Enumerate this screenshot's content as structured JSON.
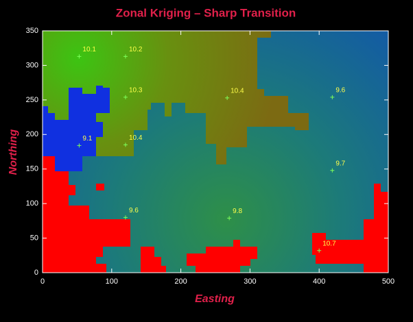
{
  "chart_data": {
    "type": "scatter",
    "title": "Zonal Kriging – Sharp Transition",
    "x_label": "Easting",
    "y_label": "Northing",
    "x": [
      53,
      120,
      120,
      267,
      419,
      53,
      120,
      419,
      120,
      270,
      400
    ],
    "y": [
      313,
      313,
      254,
      253,
      254,
      184,
      185,
      148,
      80,
      79,
      32
    ],
    "values": [
      10.1,
      10.2,
      10.3,
      10.4,
      9.6,
      9.1,
      10.4,
      9.7,
      9.6,
      9.8,
      10.7
    ],
    "marker_color": "#7dff5a",
    "label_color": "#ffff4a",
    "xlim": [
      0,
      500
    ],
    "ylim": [
      0,
      350
    ],
    "xticks": [
      0,
      100,
      200,
      300,
      400,
      500
    ],
    "yticks": [
      0,
      50,
      100,
      150,
      200,
      250,
      300,
      350
    ]
  }
}
